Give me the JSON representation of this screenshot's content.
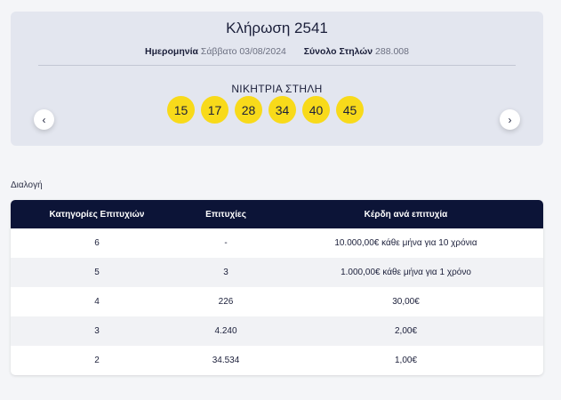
{
  "draw": {
    "title": "Κλήρωση 2541",
    "date_label": "Ημερομηνία",
    "date_value": "Σάββατο 03/08/2024",
    "columns_label": "Σύνολο Στηλών",
    "columns_value": "288.008",
    "winning_label": "ΝΙΚΗΤΡΙΑ ΣΤΗΛΗ",
    "numbers": [
      "15",
      "17",
      "28",
      "34",
      "40",
      "45"
    ],
    "prev_arrow": "‹",
    "next_arrow": "›"
  },
  "section": {
    "label": "Διαλογή"
  },
  "table": {
    "headers": [
      "Κατηγορίες Επιτυχιών",
      "Επιτυχίες",
      "Κέρδη ανά επιτυχία"
    ],
    "rows": [
      [
        "6",
        "-",
        "10.000,00€ κάθε μήνα για 10 χρόνια"
      ],
      [
        "5",
        "3",
        "1.000,00€ κάθε μήνα για 1 χρόνο"
      ],
      [
        "4",
        "226",
        "30,00€"
      ],
      [
        "3",
        "4.240",
        "2,00€"
      ],
      [
        "2",
        "34.534",
        "1,00€"
      ]
    ]
  },
  "colors": {
    "ball": "#f8da1a",
    "header_bg": "#0c1437",
    "card_bg": "#e3e6ef"
  },
  "icons": {
    "prev": "chevron-left-icon",
    "next": "chevron-right-icon"
  }
}
